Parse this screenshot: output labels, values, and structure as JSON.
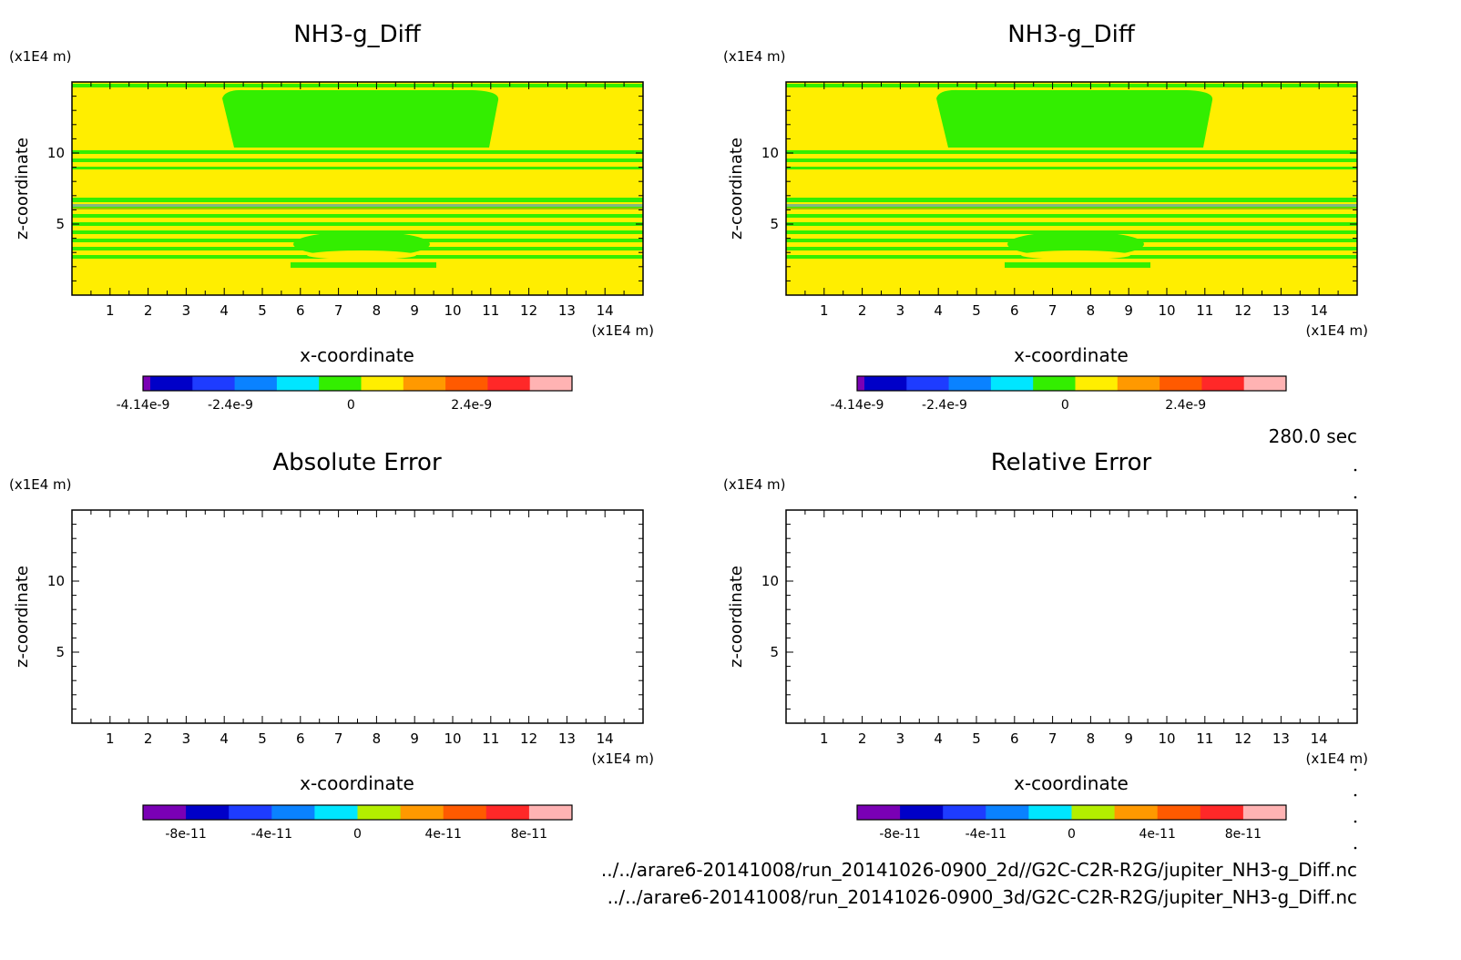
{
  "time_label": "280.0 sec",
  "files": [
    "../../arare6-20141008/run_20141026-0900_2d//G2C-C2R-R2G/jupiter_NH3-g_Diff.nc",
    "../../arare6-20141008/run_20141026-0900_3d/G2C-C2R-R2G/jupiter_NH3-g_Diff.nc"
  ],
  "colors": {
    "green": "#33ee00",
    "yellow": "#ffee00",
    "frame": "#000000"
  },
  "chart_data": [
    {
      "type": "heatmap",
      "title": "NH3-g_Diff",
      "xlabel": "x-coordinate",
      "ylabel": "z-coordinate",
      "x_unit": "(x1E4 m)",
      "y_unit": "(x1E4 m)",
      "xlim": [
        0,
        15
      ],
      "ylim": [
        0,
        15
      ],
      "x_ticks": [
        "1",
        "2",
        "3",
        "4",
        "5",
        "6",
        "7",
        "8",
        "9",
        "10",
        "11",
        "12",
        "13",
        "14"
      ],
      "y_ticks": [
        "5",
        "10"
      ],
      "colorbar": {
        "colors": [
          "#7a00b5",
          "#0000c8",
          "#1e3cff",
          "#0a82ff",
          "#00e6ff",
          "#33ee00",
          "#ffee00",
          "#ff9900",
          "#ff5a00",
          "#ff2828",
          "#ffb3b3"
        ],
        "labels": [
          "-4.14e-9",
          "-2.4e-9",
          "0",
          "2.4e-9"
        ],
        "label_values": [
          -4.14e-09,
          -2.4e-09,
          0,
          2.4e-09
        ],
        "range": [
          -4.14e-09,
          4.4e-09
        ]
      },
      "field": "banded pattern with values between -4.14e-9 and 4.4e-9 (yellow background, green bands and cap)"
    },
    {
      "type": "heatmap",
      "title": "NH3-g_Diff",
      "xlabel": "x-coordinate",
      "ylabel": "z-coordinate",
      "x_unit": "(x1E4 m)",
      "y_unit": "(x1E4 m)",
      "xlim": [
        0,
        15
      ],
      "ylim": [
        0,
        15
      ],
      "x_ticks": [
        "1",
        "2",
        "3",
        "4",
        "5",
        "6",
        "7",
        "8",
        "9",
        "10",
        "11",
        "12",
        "13",
        "14"
      ],
      "y_ticks": [
        "5",
        "10"
      ],
      "colorbar": {
        "colors": [
          "#7a00b5",
          "#0000c8",
          "#1e3cff",
          "#0a82ff",
          "#00e6ff",
          "#33ee00",
          "#ffee00",
          "#ff9900",
          "#ff5a00",
          "#ff2828",
          "#ffb3b3"
        ],
        "labels": [
          "-4.14e-9",
          "-2.4e-9",
          "0",
          "2.4e-9"
        ],
        "label_values": [
          -4.14e-09,
          -2.4e-09,
          0,
          2.4e-09
        ],
        "range": [
          -4.14e-09,
          4.4e-09
        ]
      },
      "field": "banded pattern identical to the upper-left panel"
    },
    {
      "type": "heatmap",
      "title": "Absolute Error",
      "xlabel": "x-coordinate",
      "ylabel": "z-coordinate",
      "x_unit": "(x1E4 m)",
      "y_unit": "(x1E4 m)",
      "xlim": [
        0,
        15
      ],
      "ylim": [
        0,
        15
      ],
      "x_ticks": [
        "1",
        "2",
        "3",
        "4",
        "5",
        "6",
        "7",
        "8",
        "9",
        "10",
        "11",
        "12",
        "13",
        "14"
      ],
      "y_ticks": [
        "5",
        "10"
      ],
      "colorbar": {
        "colors": [
          "#7a00b5",
          "#0000c8",
          "#1e3cff",
          "#0a82ff",
          "#00e6ff",
          "#b3ee00",
          "#ff9900",
          "#ff5a00",
          "#ff2828",
          "#ffb3b3"
        ],
        "labels": [
          "-8e-11",
          "-4e-11",
          "0",
          "4e-11",
          "8e-11"
        ],
        "label_values": [
          -8e-11,
          -4e-11,
          0,
          4e-11,
          8e-11
        ],
        "range": [
          -1e-10,
          1e-10
        ]
      },
      "field": "empty (no contours drawn)"
    },
    {
      "type": "heatmap",
      "title": "Relative Error",
      "xlabel": "x-coordinate",
      "ylabel": "z-coordinate",
      "x_unit": "(x1E4 m)",
      "y_unit": "(x1E4 m)",
      "xlim": [
        0,
        15
      ],
      "ylim": [
        0,
        15
      ],
      "x_ticks": [
        "1",
        "2",
        "3",
        "4",
        "5",
        "6",
        "7",
        "8",
        "9",
        "10",
        "11",
        "12",
        "13",
        "14"
      ],
      "y_ticks": [
        "5",
        "10"
      ],
      "colorbar": {
        "colors": [
          "#7a00b5",
          "#0000c8",
          "#1e3cff",
          "#0a82ff",
          "#00e6ff",
          "#b3ee00",
          "#ff9900",
          "#ff5a00",
          "#ff2828",
          "#ffb3b3"
        ],
        "labels": [
          "-8e-11",
          "-4e-11",
          "0",
          "4e-11",
          "8e-11"
        ],
        "label_values": [
          -8e-11,
          -4e-11,
          0,
          4e-11,
          8e-11
        ],
        "range": [
          -1e-10,
          1e-10
        ]
      },
      "field": "empty (no contours drawn)"
    }
  ]
}
